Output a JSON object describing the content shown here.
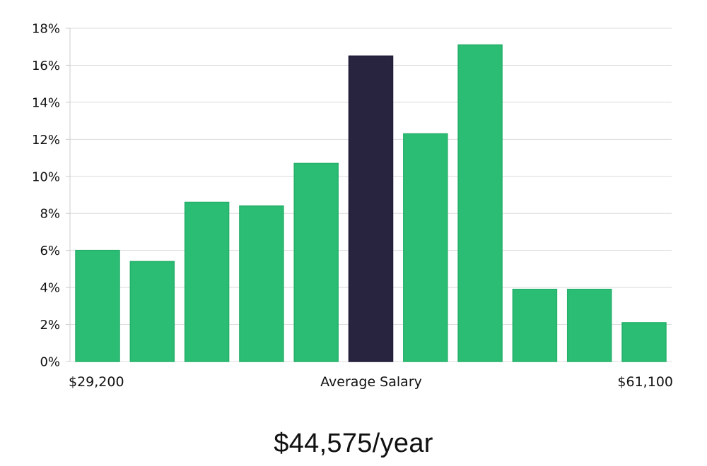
{
  "colors": {
    "bar": "#2bbd74",
    "highlight": "#28233f",
    "grid": "#dcdcdc",
    "axis": "#cccccc"
  },
  "headline": "$44,575/year",
  "chart_data": {
    "type": "bar",
    "values": [
      6.0,
      5.4,
      8.6,
      8.4,
      10.7,
      16.5,
      12.3,
      17.1,
      3.9,
      3.9,
      2.1
    ],
    "highlight_index": 5,
    "ylim": [
      0,
      18
    ],
    "y_ticks": [
      0,
      2,
      4,
      6,
      8,
      10,
      12,
      14,
      16,
      18
    ],
    "y_tick_suffix": "%",
    "grid": true,
    "x_axis_labels": {
      "left": "$29,200",
      "center": "Average Salary",
      "right": "$61,100"
    }
  }
}
